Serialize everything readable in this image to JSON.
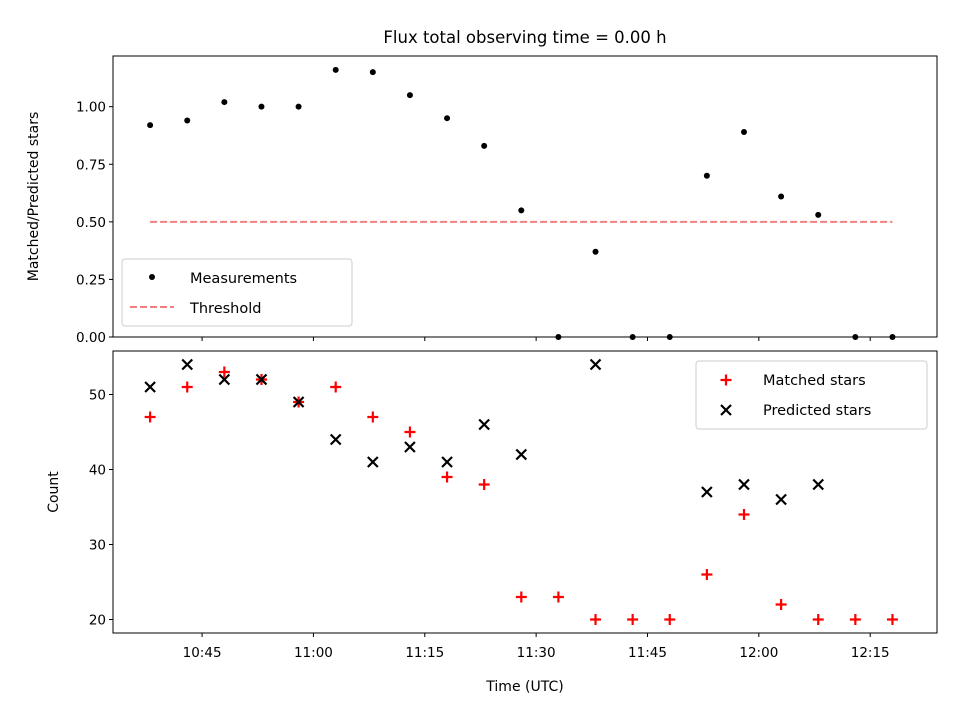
{
  "chart_data": [
    {
      "type": "scatter",
      "title": "Flux total observing time = 0.00 h",
      "xlabel": "",
      "ylabel": "Matched/Predicted stars",
      "xlim": [
        "10:33",
        "12:24"
      ],
      "ylim": [
        0,
        1.22
      ],
      "y_ticks": [
        0.0,
        0.25,
        0.5,
        0.75,
        1.0
      ],
      "y_tick_labels": [
        "0.00",
        "0.25",
        "0.50",
        "0.75",
        "1.00"
      ],
      "x_ticks": [
        "10:45",
        "11:00",
        "11:15",
        "11:30",
        "11:45",
        "12:00",
        "12:15"
      ],
      "grid": false,
      "legend_position": "lower-left",
      "series": [
        {
          "name": "Measurements",
          "kind": "scatter",
          "marker": "dot",
          "color": "#000000",
          "x": [
            "10:38",
            "10:43",
            "10:48",
            "10:53",
            "10:58",
            "11:03",
            "11:08",
            "11:13",
            "11:18",
            "11:23",
            "11:28",
            "11:33",
            "11:38",
            "11:43",
            "11:48",
            "11:53",
            "11:58",
            "12:03",
            "12:08",
            "12:13",
            "12:18"
          ],
          "y": [
            0.92,
            0.94,
            1.02,
            1.0,
            1.0,
            1.16,
            1.15,
            1.05,
            0.95,
            0.83,
            0.55,
            0.0,
            0.37,
            0.0,
            0.0,
            0.7,
            0.89,
            0.61,
            0.53,
            0.0,
            0.0
          ]
        },
        {
          "name": "Threshold",
          "kind": "line",
          "style": "dashed",
          "color": "#f08080",
          "x": [
            "10:38",
            "12:18"
          ],
          "y": [
            0.5,
            0.5
          ]
        }
      ]
    },
    {
      "type": "scatter",
      "xlabel": "Time (UTC)",
      "ylabel": "Count",
      "xlim": [
        "10:33",
        "12:24"
      ],
      "ylim": [
        18.2,
        55.8
      ],
      "y_ticks": [
        20,
        30,
        40,
        50
      ],
      "y_tick_labels": [
        "20",
        "30",
        "40",
        "50"
      ],
      "x_ticks": [
        "10:45",
        "11:00",
        "11:15",
        "11:30",
        "11:45",
        "12:00",
        "12:15"
      ],
      "x_tick_labels": [
        "10:45",
        "11:00",
        "11:15",
        "11:30",
        "11:45",
        "12:00",
        "12:15"
      ],
      "grid": false,
      "legend_position": "upper-right",
      "series": [
        {
          "name": "Matched stars",
          "kind": "scatter",
          "marker": "plus",
          "color": "#ff0000",
          "x": [
            "10:38",
            "10:43",
            "10:48",
            "10:53",
            "10:58",
            "11:03",
            "11:08",
            "11:13",
            "11:18",
            "11:23",
            "11:28",
            "11:33",
            "11:38",
            "11:43",
            "11:48",
            "11:53",
            "11:58",
            "12:03",
            "12:08",
            "12:13",
            "12:18"
          ],
          "y": [
            47,
            51,
            53,
            52,
            49,
            51,
            47,
            45,
            39,
            38,
            23,
            23,
            20,
            20,
            20,
            26,
            34,
            22,
            20,
            20,
            20
          ]
        },
        {
          "name": "Predicted stars",
          "kind": "scatter",
          "marker": "x",
          "color": "#000000",
          "x": [
            "10:38",
            "10:43",
            "10:48",
            "10:53",
            "10:58",
            "11:03",
            "11:08",
            "11:13",
            "11:18",
            "11:23",
            "11:28",
            "11:38",
            "11:53",
            "11:58",
            "12:03",
            "12:08"
          ],
          "y": [
            51,
            54,
            52,
            52,
            49,
            44,
            41,
            43,
            41,
            46,
            42,
            54,
            37,
            38,
            36,
            38
          ]
        }
      ]
    }
  ]
}
